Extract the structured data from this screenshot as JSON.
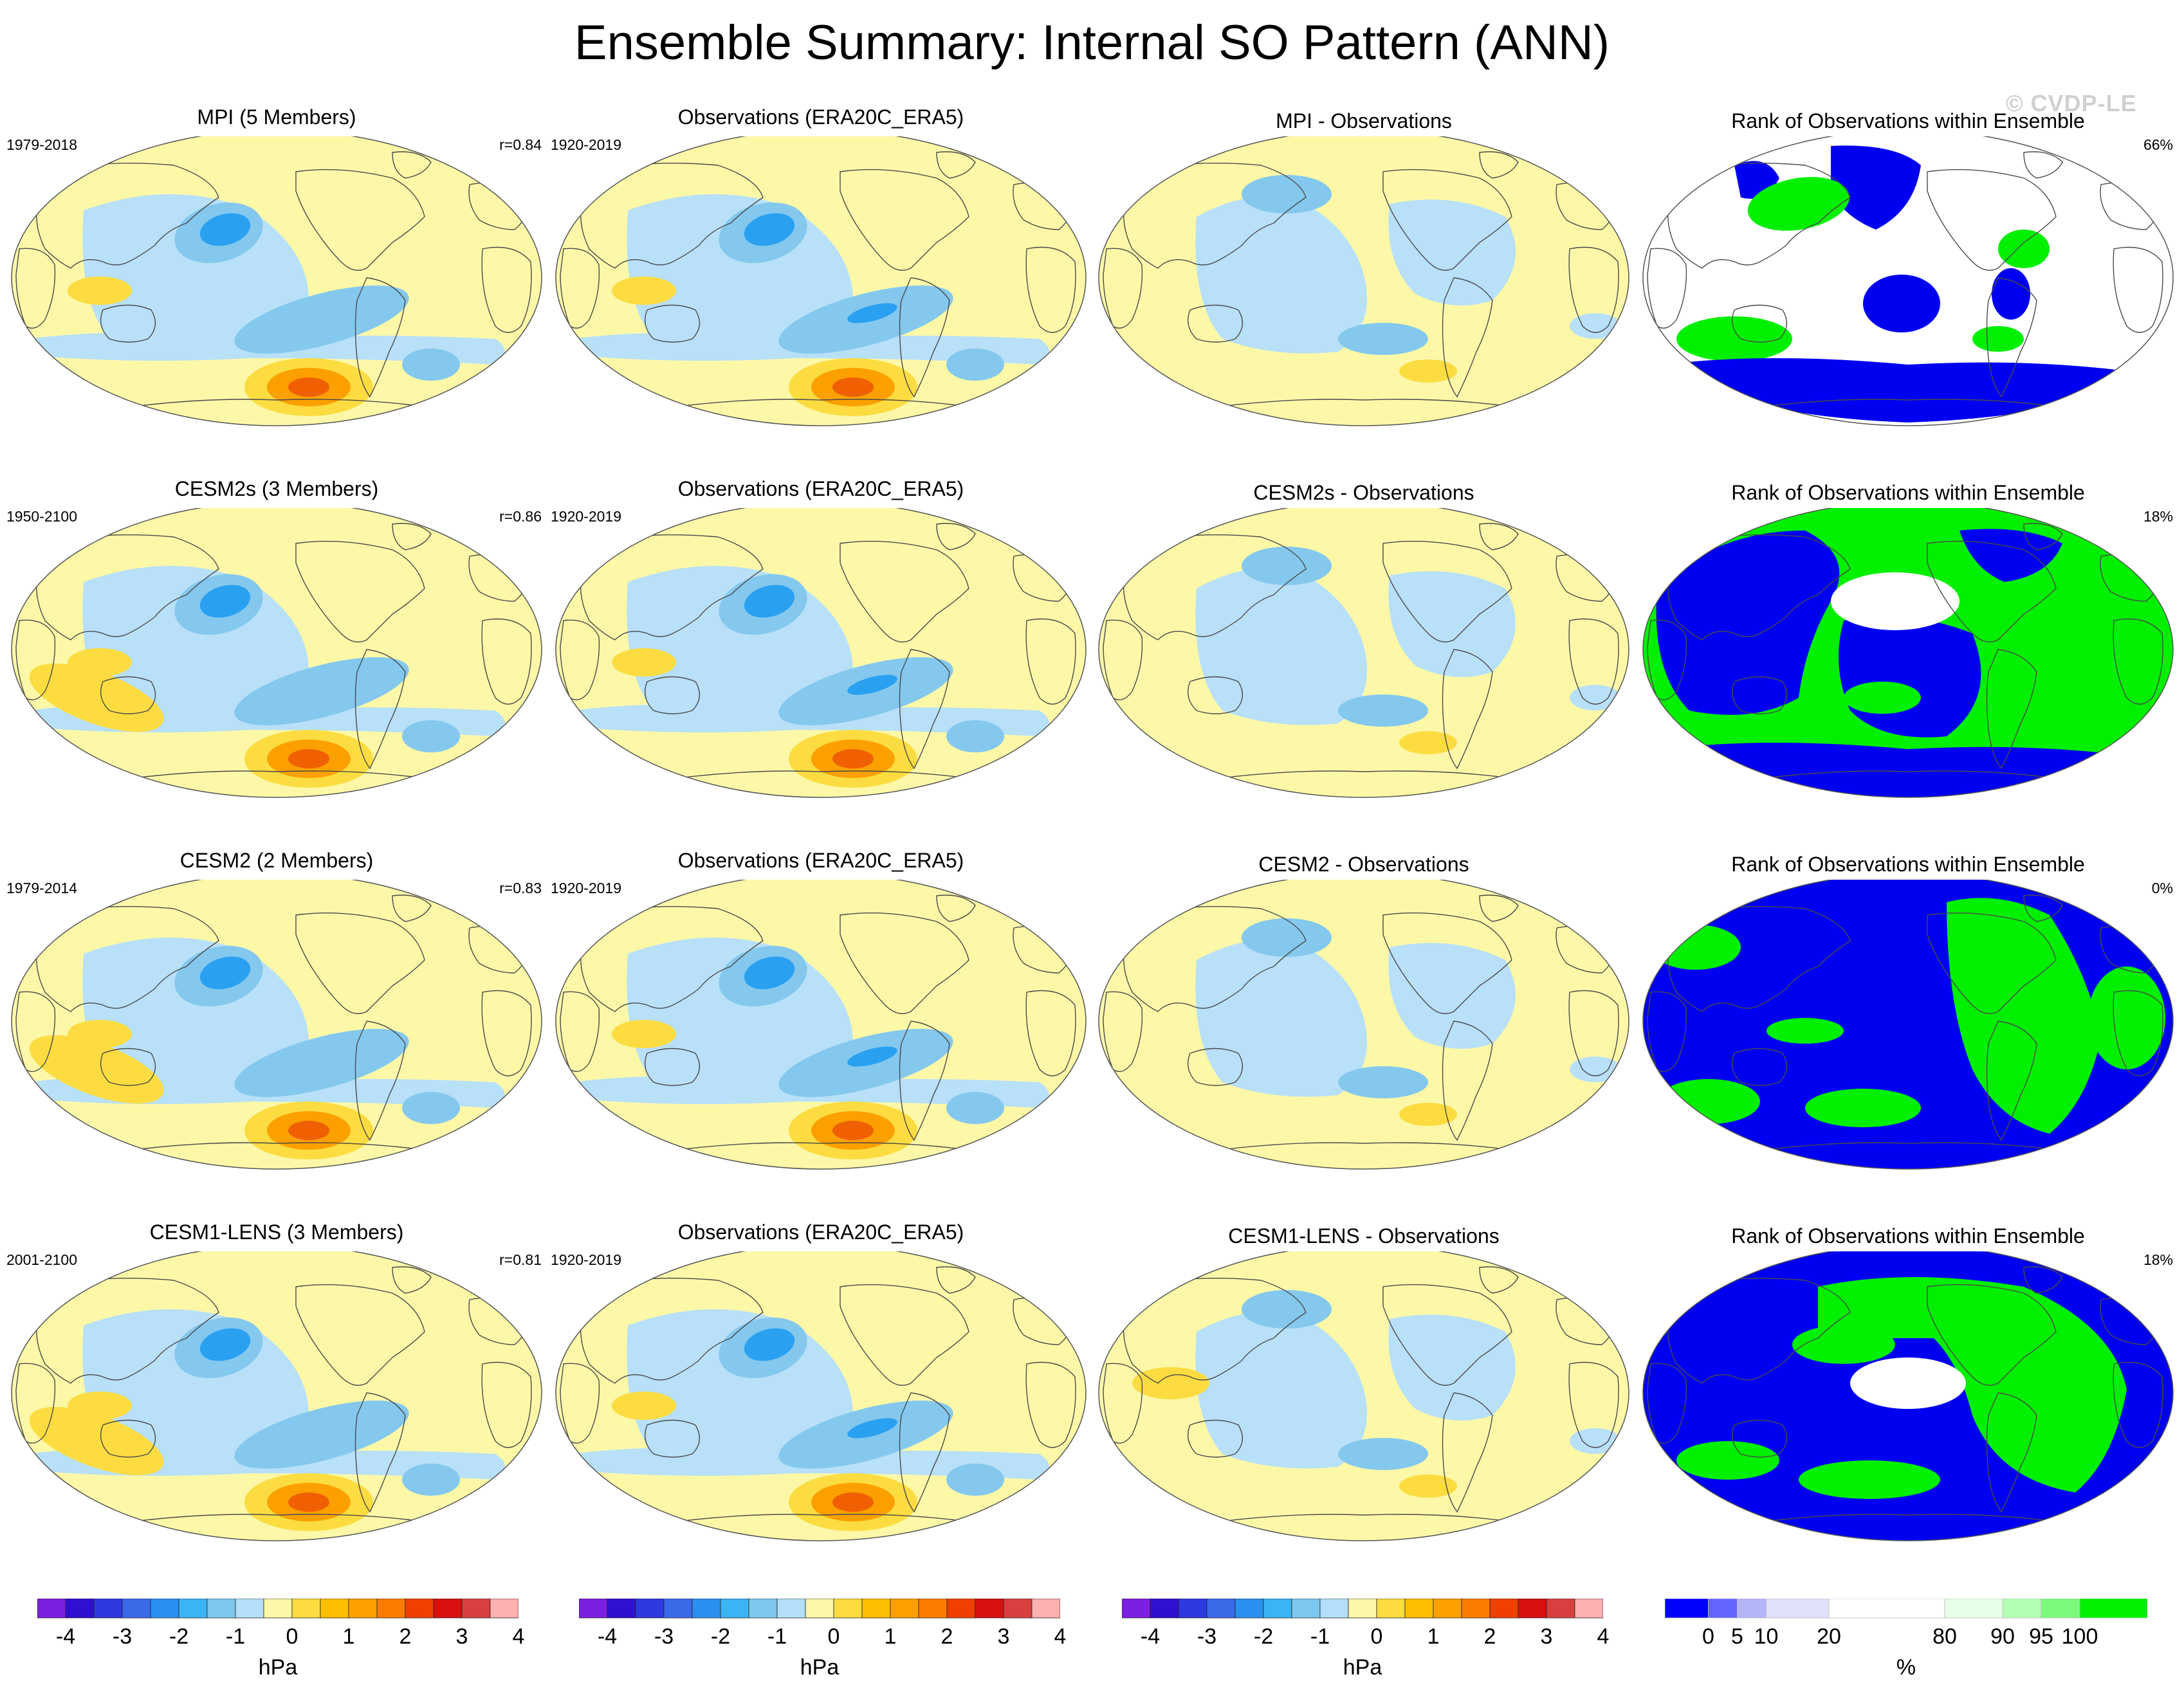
{
  "title": "Ensemble Summary: Internal SO Pattern (ANN)",
  "watermark": "© CVDP-LE",
  "palette": {
    "land_outline": "#4a4a4a",
    "pressure": [
      "#7b1fe0",
      "#3010d0",
      "#2c3ae0",
      "#3a6ae8",
      "#2a90f0",
      "#3ab4f4",
      "#7cc8ee",
      "#b4defa",
      "#fcf8a8",
      "#fcdc40",
      "#fcbe00",
      "#fca000",
      "#fc7c00",
      "#f04000",
      "#d81010",
      "#d84040",
      "#fcb0b0"
    ],
    "rank": [
      "#0000ff",
      "#6464ff",
      "#b4b4fa",
      "#e0e0fa",
      "#ffffff",
      "#e6ffe6",
      "#b4ffb4",
      "#7afa7a",
      "#00f000"
    ],
    "blue_dark": "#2aa0f0",
    "blue_mid": "#84c8ee",
    "blue_light": "#b8e0f8",
    "yellow": "#fcf8a8",
    "orange_light": "#fcdc40",
    "orange": "#fca000",
    "orange_dark": "#f06000",
    "rank_blue": "#0000f0",
    "rank_green": "#00f000"
  },
  "rows": [
    {
      "model": {
        "title": "MPI (5 Members)",
        "years": "1979-2018",
        "r": "r=0.84"
      },
      "obs": {
        "title": "Observations (ERA20C_ERA5)",
        "years": "1920-2019"
      },
      "diff": {
        "title": "MPI - Observations"
      },
      "rank": {
        "title": "Rank of Observations within Ensemble",
        "pct": "66%"
      }
    },
    {
      "model": {
        "title": "CESM2s (3 Members)",
        "years": "1950-2100",
        "r": "r=0.86"
      },
      "obs": {
        "title": "Observations (ERA20C_ERA5)",
        "years": "1920-2019"
      },
      "diff": {
        "title": "CESM2s - Observations"
      },
      "rank": {
        "title": "Rank of Observations within Ensemble",
        "pct": "18%"
      }
    },
    {
      "model": {
        "title": "CESM2 (2 Members)",
        "years": "1979-2014",
        "r": "r=0.83"
      },
      "obs": {
        "title": "Observations (ERA20C_ERA5)",
        "years": "1920-2019"
      },
      "diff": {
        "title": "CESM2 - Observations"
      },
      "rank": {
        "title": "Rank of Observations within Ensemble",
        "pct": "0%"
      }
    },
    {
      "model": {
        "title": "CESM1-LENS (3 Members)",
        "years": "2001-2100",
        "r": "r=0.81"
      },
      "obs": {
        "title": "Observations (ERA20C_ERA5)",
        "years": "1920-2019"
      },
      "diff": {
        "title": "CESM1-LENS - Observations"
      },
      "rank": {
        "title": "Rank of Observations within Ensemble",
        "pct": "18%"
      }
    }
  ],
  "chart_data": {
    "type": "heatmap",
    "projection": "Robinson (Pacific-centered)",
    "variable": "SLP internal Southern Oscillation pattern regression",
    "pressure_colorbar": {
      "units": "hPa",
      "levels": [
        -4,
        -3.5,
        -3,
        -2.5,
        -2,
        -1.5,
        -1,
        -0.5,
        0,
        0.5,
        1,
        1.5,
        2,
        2.5,
        3,
        3.5,
        4
      ],
      "tick_labels": [
        "-4",
        "-3",
        "-2",
        "-1",
        "0",
        "1",
        "2",
        "3",
        "4"
      ]
    },
    "rank_colorbar": {
      "units": "%",
      "levels": [
        0,
        5,
        10,
        20,
        80,
        90,
        95,
        100
      ],
      "tick_labels": [
        "0",
        "5",
        "10",
        "20",
        "80",
        "90",
        "95",
        "100"
      ]
    },
    "rank_summary_pct": [
      66,
      18,
      0,
      18
    ],
    "pattern_correlations": [
      0.84,
      0.86,
      0.83,
      0.81
    ]
  }
}
